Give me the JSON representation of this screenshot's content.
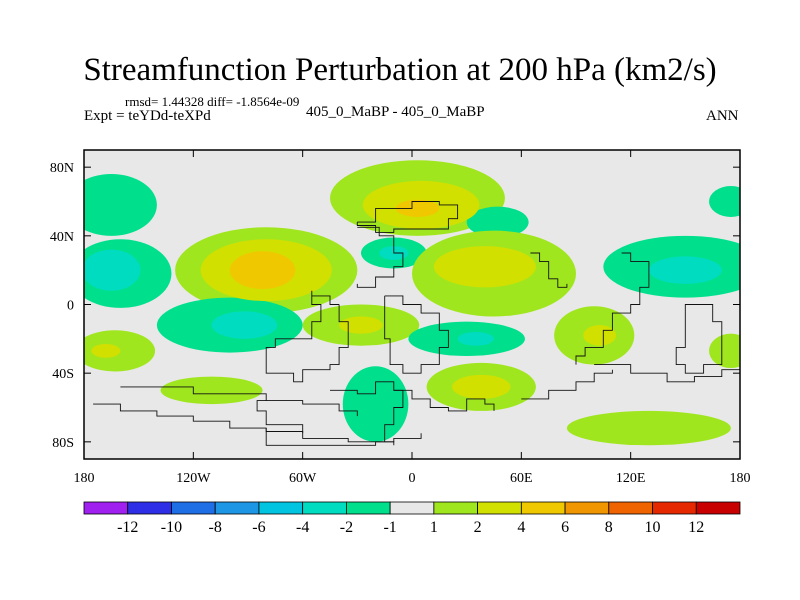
{
  "header": {
    "title": "Streamfunction Perturbation at 200 hPa (km2/s)",
    "stats": "rmsd= 1.44328 diff= -1.8564e-09",
    "experiment": "Expt = teYDd-teXPd",
    "case_label": "405_0_MaBP - 405_0_MaBP",
    "season": "ANN"
  },
  "chart_data": {
    "type": "heatmap",
    "title": "Streamfunction Perturbation at 200 hPa (km2/s)",
    "projection": "cylindrical equidistant",
    "xlim": [
      -180,
      180
    ],
    "ylim": [
      -90,
      90
    ],
    "x_ticks": [
      {
        "value": -180,
        "label": "180"
      },
      {
        "value": -120,
        "label": "120W"
      },
      {
        "value": -60,
        "label": "60W"
      },
      {
        "value": 0,
        "label": "0"
      },
      {
        "value": 60,
        "label": "60E"
      },
      {
        "value": 120,
        "label": "120E"
      },
      {
        "value": 180,
        "label": "180"
      }
    ],
    "y_ticks": [
      {
        "value": 80,
        "label": "80N"
      },
      {
        "value": 40,
        "label": "40N"
      },
      {
        "value": 0,
        "label": "0"
      },
      {
        "value": -40,
        "label": "40S"
      },
      {
        "value": -80,
        "label": "80S"
      }
    ],
    "colorbar": {
      "labels": [
        "-12",
        "-10",
        "-8",
        "-6",
        "-4",
        "-2",
        "-1",
        "1",
        "2",
        "4",
        "6",
        "8",
        "10",
        "12"
      ],
      "colors": [
        "#a020f0",
        "#2e2ee6",
        "#1e6ee6",
        "#1e96e6",
        "#00c4e0",
        "#00dcc0",
        "#00e08c",
        "#e8e8e8",
        "#a0e61e",
        "#d2e000",
        "#f0c800",
        "#f09600",
        "#f06400",
        "#e62800",
        "#c80000"
      ]
    },
    "blobs": [
      {
        "lon": -165,
        "lat": 58,
        "rx": 25,
        "ry": 18,
        "level": -1
      },
      {
        "lon": -160,
        "lat": 18,
        "rx": 28,
        "ry": 20,
        "level": -1
      },
      {
        "lon": -165,
        "lat": 20,
        "rx": 16,
        "ry": 12,
        "level": -2
      },
      {
        "lon": -80,
        "lat": 20,
        "rx": 50,
        "ry": 25,
        "level": 1
      },
      {
        "lon": -80,
        "lat": 20,
        "rx": 36,
        "ry": 18,
        "level": 2
      },
      {
        "lon": -82,
        "lat": 20,
        "rx": 18,
        "ry": 11,
        "level": 3
      },
      {
        "lon": 3,
        "lat": 62,
        "rx": 48,
        "ry": 22,
        "level": 1
      },
      {
        "lon": 5,
        "lat": 58,
        "rx": 32,
        "ry": 14,
        "level": 2
      },
      {
        "lon": 3,
        "lat": 56,
        "rx": 12,
        "ry": 5,
        "level": 3
      },
      {
        "lon": -10,
        "lat": 30,
        "rx": 18,
        "ry": 9,
        "level": -1
      },
      {
        "lon": -10,
        "lat": 30,
        "rx": 8,
        "ry": 4,
        "level": -2
      },
      {
        "lon": 47,
        "lat": 48,
        "rx": 17,
        "ry": 9,
        "level": -1
      },
      {
        "lon": 45,
        "lat": 18,
        "rx": 45,
        "ry": 25,
        "level": 1
      },
      {
        "lon": 40,
        "lat": 22,
        "rx": 28,
        "ry": 12,
        "level": 2
      },
      {
        "lon": 150,
        "lat": 22,
        "rx": 45,
        "ry": 18,
        "level": -1
      },
      {
        "lon": 150,
        "lat": 20,
        "rx": 20,
        "ry": 8,
        "level": -2
      },
      {
        "lon": 175,
        "lat": 60,
        "rx": 12,
        "ry": 9,
        "level": -1
      },
      {
        "lon": -100,
        "lat": -12,
        "rx": 40,
        "ry": 16,
        "level": -1
      },
      {
        "lon": -92,
        "lat": -12,
        "rx": 18,
        "ry": 8,
        "level": -2
      },
      {
        "lon": -163,
        "lat": -27,
        "rx": 22,
        "ry": 12,
        "level": 1
      },
      {
        "lon": -168,
        "lat": -27,
        "rx": 8,
        "ry": 4,
        "level": 2
      },
      {
        "lon": -28,
        "lat": -12,
        "rx": 32,
        "ry": 12,
        "level": 1
      },
      {
        "lon": -28,
        "lat": -12,
        "rx": 12,
        "ry": 5,
        "level": 2
      },
      {
        "lon": 30,
        "lat": -20,
        "rx": 32,
        "ry": 10,
        "level": -1
      },
      {
        "lon": 35,
        "lat": -20,
        "rx": 10,
        "ry": 4,
        "level": -2
      },
      {
        "lon": 100,
        "lat": -18,
        "rx": 22,
        "ry": 17,
        "level": 1
      },
      {
        "lon": 103,
        "lat": -18,
        "rx": 9,
        "ry": 6,
        "level": 2
      },
      {
        "lon": 175,
        "lat": -27,
        "rx": 12,
        "ry": 10,
        "level": 1
      },
      {
        "lon": -110,
        "lat": -50,
        "rx": 28,
        "ry": 8,
        "level": 1
      },
      {
        "lon": -20,
        "lat": -58,
        "rx": 18,
        "ry": 22,
        "level": -1
      },
      {
        "lon": 38,
        "lat": -48,
        "rx": 30,
        "ry": 14,
        "level": 1
      },
      {
        "lon": 38,
        "lat": -48,
        "rx": 16,
        "ry": 7,
        "level": 2
      },
      {
        "lon": 130,
        "lat": -72,
        "rx": 45,
        "ry": 10,
        "level": 1
      }
    ],
    "outlines": [
      [
        [
          -30,
          48
        ],
        [
          -20,
          56
        ],
        [
          0,
          60
        ],
        [
          15,
          58
        ],
        [
          25,
          50
        ],
        [
          20,
          44
        ],
        [
          0,
          44
        ],
        [
          -10,
          42
        ],
        [
          -20,
          46
        ],
        [
          -30,
          48
        ]
      ],
      [
        [
          -30,
          45
        ],
        [
          -18,
          40
        ],
        [
          -10,
          30
        ],
        [
          -5,
          22
        ],
        [
          -10,
          16
        ],
        [
          -20,
          10
        ],
        [
          -30,
          12
        ]
      ],
      [
        [
          -40,
          0
        ],
        [
          -45,
          5
        ],
        [
          -55,
          8
        ],
        [
          -55,
          0
        ],
        [
          -50,
          -10
        ],
        [
          -55,
          -20
        ],
        [
          -75,
          -25
        ],
        [
          -80,
          -40
        ],
        [
          -65,
          -45
        ],
        [
          -60,
          -38
        ],
        [
          -45,
          -35
        ],
        [
          -40,
          -25
        ],
        [
          -35,
          -10
        ],
        [
          -40,
          0
        ]
      ],
      [
        [
          -15,
          5
        ],
        [
          -5,
          0
        ],
        [
          5,
          -5
        ],
        [
          15,
          -15
        ],
        [
          20,
          -25
        ],
        [
          15,
          -35
        ],
        [
          5,
          -40
        ],
        [
          -5,
          -35
        ],
        [
          -12,
          -20
        ],
        [
          -15,
          -5
        ],
        [
          -15,
          5
        ]
      ],
      [
        [
          -160,
          -48
        ],
        [
          -120,
          -52
        ],
        [
          -80,
          -56
        ],
        [
          -60,
          -58
        ],
        [
          -40,
          -62
        ],
        [
          -30,
          -65
        ]
      ],
      [
        [
          -80,
          -56
        ],
        [
          -85,
          -62
        ],
        [
          -80,
          -70
        ],
        [
          -60,
          -75
        ]
      ],
      [
        [
          -175,
          -58
        ],
        [
          -160,
          -62
        ],
        [
          -140,
          -65
        ],
        [
          -120,
          -68
        ],
        [
          -100,
          -72
        ],
        [
          -80,
          -74
        ],
        [
          -60,
          -78
        ],
        [
          -35,
          -80
        ],
        [
          -10,
          -78
        ],
        [
          5,
          -75
        ]
      ],
      [
        [
          -80,
          -72
        ],
        [
          -80,
          -82
        ],
        [
          -40,
          -82
        ],
        [
          -20,
          -80
        ],
        [
          -10,
          -82
        ]
      ],
      [
        [
          -45,
          -50
        ],
        [
          -30,
          -52
        ],
        [
          -20,
          -45
        ],
        [
          -10,
          -50
        ],
        [
          0,
          -55
        ],
        [
          10,
          -60
        ],
        [
          20,
          -62
        ],
        [
          30,
          -55
        ],
        [
          40,
          -58
        ],
        [
          45,
          -62
        ]
      ],
      [
        [
          -10,
          -50
        ],
        [
          -5,
          -60
        ],
        [
          -10,
          -70
        ],
        [
          -15,
          -80
        ]
      ],
      [
        [
          65,
          30
        ],
        [
          70,
          25
        ],
        [
          75,
          15
        ],
        [
          80,
          10
        ],
        [
          85,
          12
        ]
      ],
      [
        [
          115,
          30
        ],
        [
          120,
          25
        ],
        [
          130,
          10
        ],
        [
          125,
          0
        ],
        [
          120,
          -5
        ],
        [
          110,
          -15
        ],
        [
          105,
          -25
        ],
        [
          95,
          -30
        ],
        [
          90,
          -35
        ]
      ],
      [
        [
          150,
          -10
        ],
        [
          150,
          0
        ],
        [
          160,
          0
        ],
        [
          165,
          -10
        ],
        [
          170,
          -20
        ],
        [
          170,
          -35
        ],
        [
          160,
          -40
        ],
        [
          150,
          -35
        ],
        [
          145,
          -25
        ],
        [
          150,
          -10
        ]
      ],
      [
        [
          100,
          -35
        ],
        [
          120,
          -40
        ],
        [
          140,
          -45
        ],
        [
          155,
          -42
        ],
        [
          170,
          -38
        ],
        [
          180,
          -40
        ]
      ],
      [
        [
          60,
          -55
        ],
        [
          75,
          -50
        ],
        [
          90,
          -45
        ],
        [
          100,
          -40
        ],
        [
          110,
          -38
        ]
      ]
    ]
  }
}
